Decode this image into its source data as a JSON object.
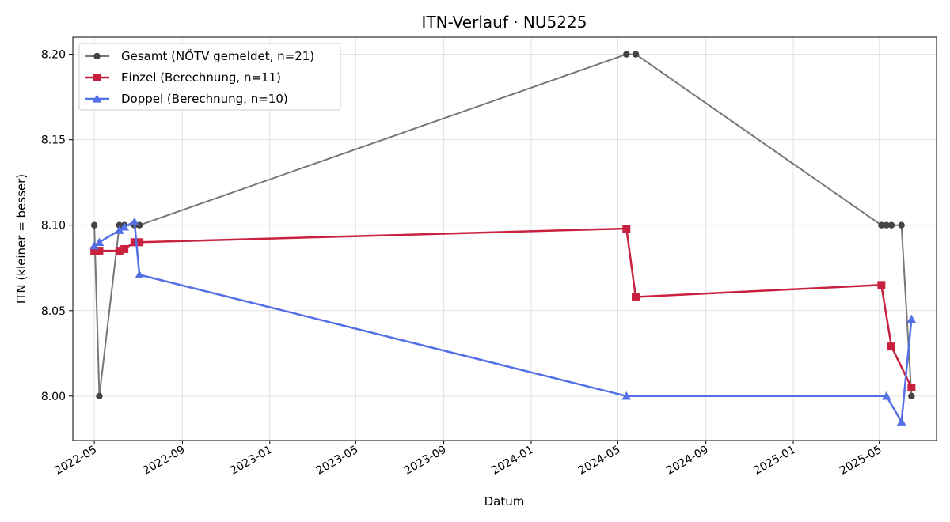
{
  "chart_data": {
    "type": "line",
    "title": "ITN-Verlauf · NU5225",
    "xlabel": "Datum",
    "ylabel": "ITN  (kleiner = besser)",
    "x_axis": "date",
    "xlim": [
      "2022-04-01",
      "2025-07-20"
    ],
    "ylim": [
      7.974,
      8.21
    ],
    "x_ticks": [
      "2022-05-01",
      "2022-09-01",
      "2023-01-01",
      "2023-05-01",
      "2023-09-01",
      "2024-01-01",
      "2024-05-01",
      "2024-09-01",
      "2025-01-01",
      "2025-05-01"
    ],
    "x_tick_labels": [
      "2022-05",
      "2022-09",
      "2023-01",
      "2023-05",
      "2023-09",
      "2024-01",
      "2024-05",
      "2024-09",
      "2025-01",
      "2025-05"
    ],
    "y_ticks": [
      8.0,
      8.05,
      8.1,
      8.15,
      8.2
    ],
    "y_tick_labels": [
      "8.00",
      "8.05",
      "8.10",
      "8.15",
      "8.20"
    ],
    "grid": true,
    "legend_position": "top-left",
    "series": [
      {
        "name": "Gesamt (NÖTV gemeldet, n=21)",
        "color": "#777777",
        "marker_color": "#444444",
        "marker": "circle",
        "points": [
          [
            "2022-05-01",
            8.1
          ],
          [
            "2022-05-08",
            8.0
          ],
          [
            "2022-06-05",
            8.1
          ],
          [
            "2022-06-12",
            8.1
          ],
          [
            "2022-06-26",
            8.1
          ],
          [
            "2022-07-03",
            8.1
          ],
          [
            "2024-05-13",
            8.2
          ],
          [
            "2024-05-26",
            8.2
          ],
          [
            "2025-05-04",
            8.1
          ],
          [
            "2025-05-11",
            8.1
          ],
          [
            "2025-05-18",
            8.1
          ],
          [
            "2025-06-01",
            8.1
          ],
          [
            "2025-06-15",
            8.0
          ]
        ]
      },
      {
        "name": "Einzel (Berechnung, n=11)",
        "color": "#c8203f",
        "marker": "square",
        "points": [
          [
            "2022-05-01",
            8.085
          ],
          [
            "2022-05-08",
            8.085
          ],
          [
            "2022-06-05",
            8.085
          ],
          [
            "2022-06-12",
            8.086
          ],
          [
            "2022-06-26",
            8.09
          ],
          [
            "2022-07-03",
            8.09
          ],
          [
            "2024-05-13",
            8.098
          ],
          [
            "2024-05-26",
            8.058
          ],
          [
            "2025-05-04",
            8.065
          ],
          [
            "2025-05-18",
            8.029
          ],
          [
            "2025-06-15",
            8.005
          ]
        ]
      },
      {
        "name": "Doppel (Berechnung, n=10)",
        "color": "#5470e6",
        "marker": "triangle",
        "points": [
          [
            "2022-05-01",
            8.088
          ],
          [
            "2022-05-08",
            8.09
          ],
          [
            "2022-06-05",
            8.097
          ],
          [
            "2022-06-12",
            8.099
          ],
          [
            "2022-06-26",
            8.102
          ],
          [
            "2022-07-03",
            8.071
          ],
          [
            "2024-05-13",
            8.0
          ],
          [
            "2025-05-11",
            8.0
          ],
          [
            "2025-06-01",
            7.985
          ],
          [
            "2025-06-15",
            8.045
          ]
        ]
      }
    ]
  }
}
